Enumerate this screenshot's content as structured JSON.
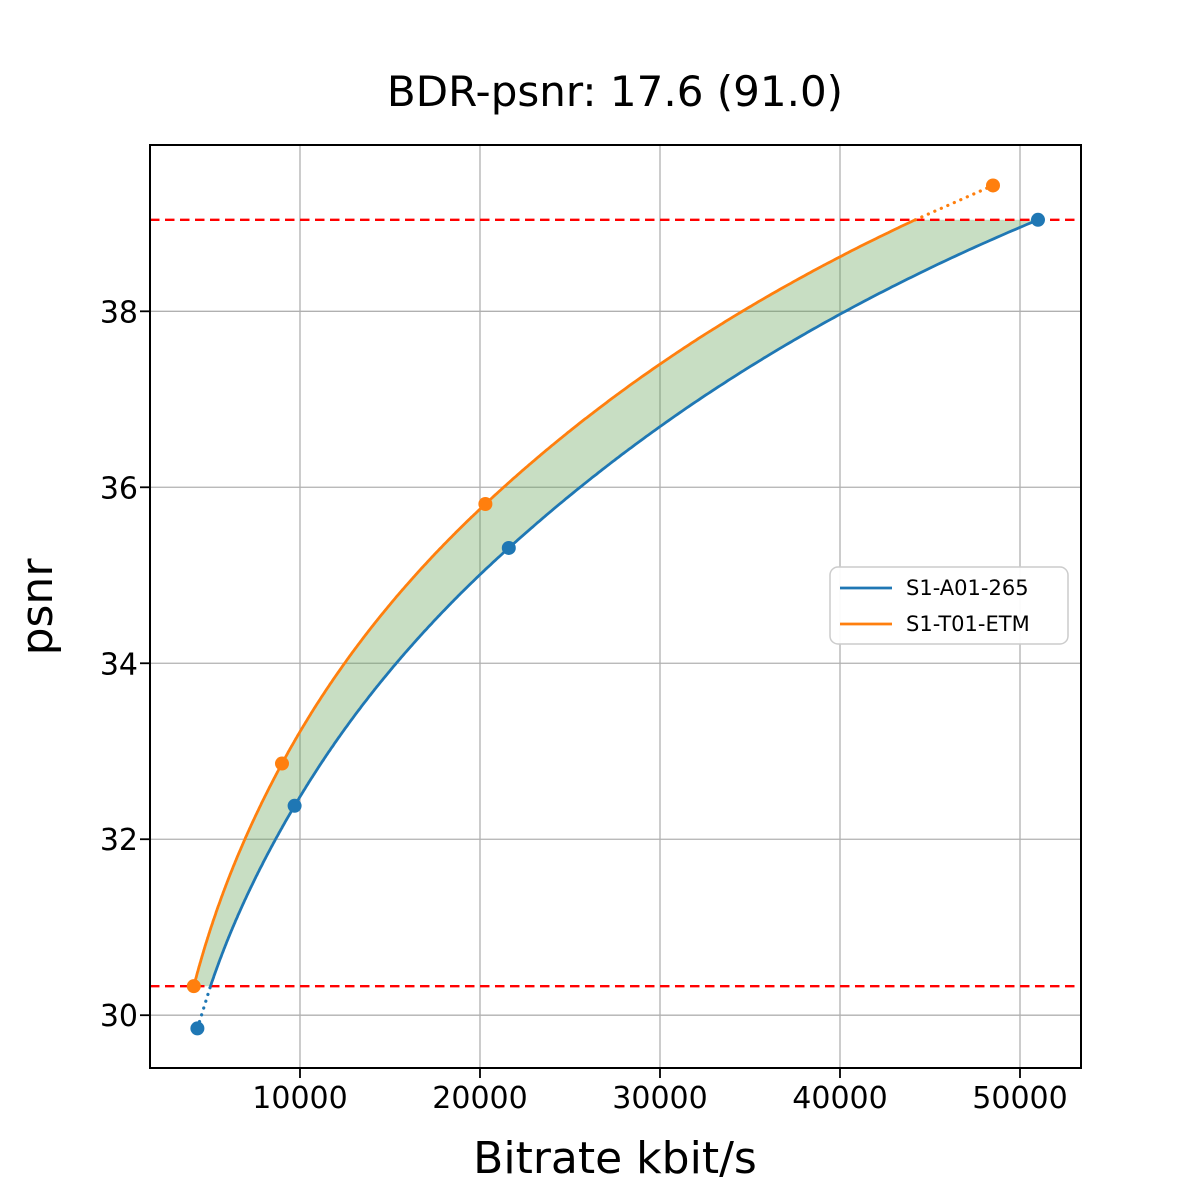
{
  "chart_data": {
    "type": "line",
    "title": "BDR-psnr: 17.6 (91.0)",
    "xlabel": "Bitrate kbit/s",
    "ylabel": "psnr",
    "xlim": [
      1667,
      53389
    ],
    "ylim": [
      29.4,
      39.89
    ],
    "xticks": [
      10000,
      20000,
      30000,
      40000,
      50000
    ],
    "yticks": [
      30,
      32,
      34,
      36,
      38
    ],
    "grid": true,
    "grid_color": "#b0b0b0",
    "interpolation": "monotone-cubic-in-log-bitrate",
    "series": [
      {
        "name": "S1-A01-265",
        "color": "#1f77b4",
        "marker": "circle",
        "points": [
          [
            4300,
            29.85
          ],
          [
            9700,
            32.38
          ],
          [
            21600,
            35.31
          ],
          [
            51000,
            39.04
          ]
        ]
      },
      {
        "name": "S1-T01-ETM",
        "color": "#ff7f0e",
        "marker": "circle",
        "points": [
          [
            4100,
            30.33
          ],
          [
            9000,
            32.86
          ],
          [
            20300,
            35.81
          ],
          [
            48500,
            39.43
          ]
        ]
      }
    ],
    "bd_interval": {
      "lo": 30.33,
      "hi": 39.04
    },
    "hlines": {
      "values": [
        30.33,
        39.04
      ],
      "color": "#ff0000",
      "style": "dashed"
    },
    "fill_between": {
      "color": "#60a053",
      "opacity": 0.35
    },
    "legend": {
      "position": "center right"
    }
  }
}
